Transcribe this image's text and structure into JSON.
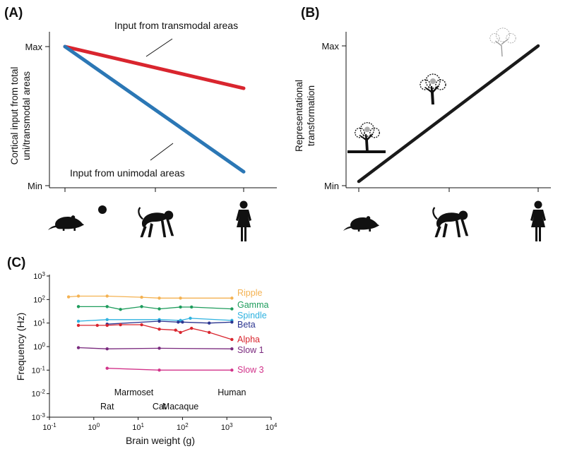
{
  "panels": {
    "a": "(A)",
    "b": "(B)",
    "c": "(C)"
  },
  "chart_data": [
    {
      "type": "line",
      "panel": "A",
      "ylabel_lines": [
        "Cortical input from total",
        "uni/transmodal areas"
      ],
      "y_ticks": [
        "Min",
        "Max"
      ],
      "x_categories": [
        "rat-icon",
        "marmoset-icon",
        "monkey-icon",
        "human-icon"
      ],
      "series": [
        {
          "name": "Input from transmodal areas",
          "color": "#d9252e",
          "y": [
            1.0,
            0.7
          ]
        },
        {
          "name": "Input from unimodal areas",
          "color": "#2b77b5",
          "y": [
            1.0,
            0.1
          ]
        }
      ]
    },
    {
      "type": "line",
      "panel": "B",
      "ylabel_lines": [
        "Representational",
        "transformation"
      ],
      "y_ticks": [
        "Min",
        "Max"
      ],
      "x_categories": [
        "rat-icon",
        "monkey-icon",
        "human-icon"
      ],
      "series": [
        {
          "color": "#1a1a1a",
          "y": [
            0.03,
            1.0
          ]
        }
      ],
      "illustrations": [
        "tree-on-ground-icon",
        "tree-icon",
        "faint-tree-icon"
      ]
    },
    {
      "type": "line",
      "panel": "C",
      "xlabel": "Brain weight (g)",
      "ylabel": "Frequency (Hz)",
      "xscale": "log",
      "yscale": "log",
      "xlim": [
        0.1,
        10000
      ],
      "ylim": [
        0.001,
        1000
      ],
      "x_ticks": [
        {
          "base": "10",
          "exp": "-1"
        },
        {
          "base": "10",
          "exp": "0"
        },
        {
          "base": "10",
          "exp": "1"
        },
        {
          "base": "10",
          "exp": "2"
        },
        {
          "base": "10",
          "exp": "3"
        },
        {
          "base": "10",
          "exp": "4"
        }
      ],
      "y_ticks": [
        {
          "base": "10",
          "exp": "3"
        },
        {
          "base": "10",
          "exp": "2"
        },
        {
          "base": "10",
          "exp": "1"
        },
        {
          "base": "10",
          "exp": "0"
        },
        {
          "base": "10",
          "exp": "-1"
        },
        {
          "base": "10",
          "exp": "-2"
        },
        {
          "base": "10",
          "exp": "-3"
        }
      ],
      "species_labels": [
        {
          "name": "Rat",
          "x": 2,
          "row": 2
        },
        {
          "name": "Marmoset",
          "x": 8,
          "row": 1
        },
        {
          "name": "Cat",
          "x": 30,
          "row": 2
        },
        {
          "name": "Macaque",
          "x": 90,
          "row": 2
        },
        {
          "name": "Human",
          "x": 1300,
          "row": 1
        }
      ],
      "series": [
        {
          "name": "Ripple",
          "color": "#f4b252",
          "x": [
            0.27,
            0.45,
            2,
            12,
            30,
            90,
            1300
          ],
          "y": [
            130,
            140,
            140,
            125,
            115,
            115,
            115
          ]
        },
        {
          "name": "Gamma",
          "color": "#1e9c5c",
          "x": [
            0.45,
            2,
            4,
            12,
            30,
            90,
            160,
            1300
          ],
          "y": [
            50,
            50,
            38,
            50,
            40,
            48,
            48,
            40
          ]
        },
        {
          "name": "Spindle",
          "color": "#2eb2e0",
          "x": [
            0.45,
            2,
            30,
            90,
            150,
            1300
          ],
          "y": [
            12,
            14,
            14,
            13,
            16,
            13
          ]
        },
        {
          "name": "Beta",
          "color": "#2b3590",
          "x": [
            2,
            30,
            80,
            100,
            400,
            1300
          ],
          "y": [
            9,
            12,
            11,
            11,
            10,
            11
          ]
        },
        {
          "name": "Alpha",
          "color": "#d9252e",
          "x": [
            0.45,
            1.2,
            2,
            4,
            12,
            30,
            70,
            90,
            160,
            400,
            1300
          ],
          "y": [
            8,
            8,
            8,
            8.5,
            8.5,
            5.5,
            5,
            4,
            6,
            4,
            2
          ]
        },
        {
          "name": "Slow 1",
          "color": "#7a2a7e",
          "x": [
            0.45,
            2,
            30,
            1300
          ],
          "y": [
            0.9,
            0.8,
            0.85,
            0.8
          ]
        },
        {
          "name": "Slow 3",
          "color": "#d2338a",
          "x": [
            2,
            30,
            1300
          ],
          "y": [
            0.12,
            0.1,
            0.1
          ]
        }
      ]
    }
  ]
}
